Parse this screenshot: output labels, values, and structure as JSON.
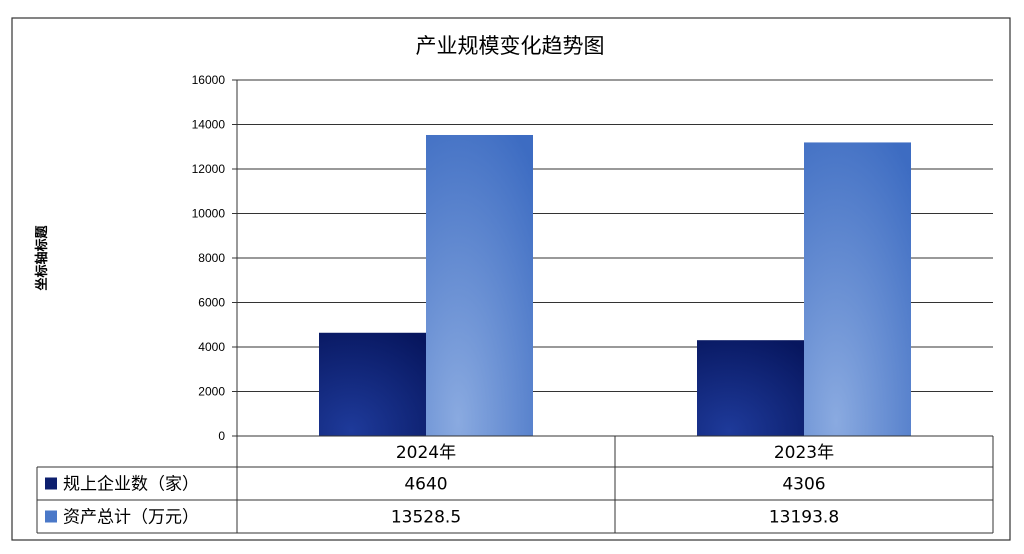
{
  "chart_data": {
    "type": "bar",
    "title": "产业规模变化趋势图",
    "xlabel": "",
    "ylabel": "坐标轴标题",
    "ylim": [
      0,
      16000
    ],
    "yticks": [
      "0",
      "2000",
      "4000",
      "6000",
      "8000",
      "10000",
      "12000",
      "14000",
      "16000"
    ],
    "grid": true,
    "legend": "data-table",
    "categories": [
      "2024年",
      "2023年"
    ],
    "series": [
      {
        "name": "规上企业数（家）",
        "values": [
          4640,
          4306
        ],
        "labels": [
          "4640",
          "4306"
        ],
        "color": "#0d1f6e"
      },
      {
        "name": "资产总计（万元）",
        "values": [
          13528.5,
          13193.8
        ],
        "labels": [
          "13528.5",
          "13193.8"
        ],
        "color": "#4a78c8"
      }
    ]
  }
}
